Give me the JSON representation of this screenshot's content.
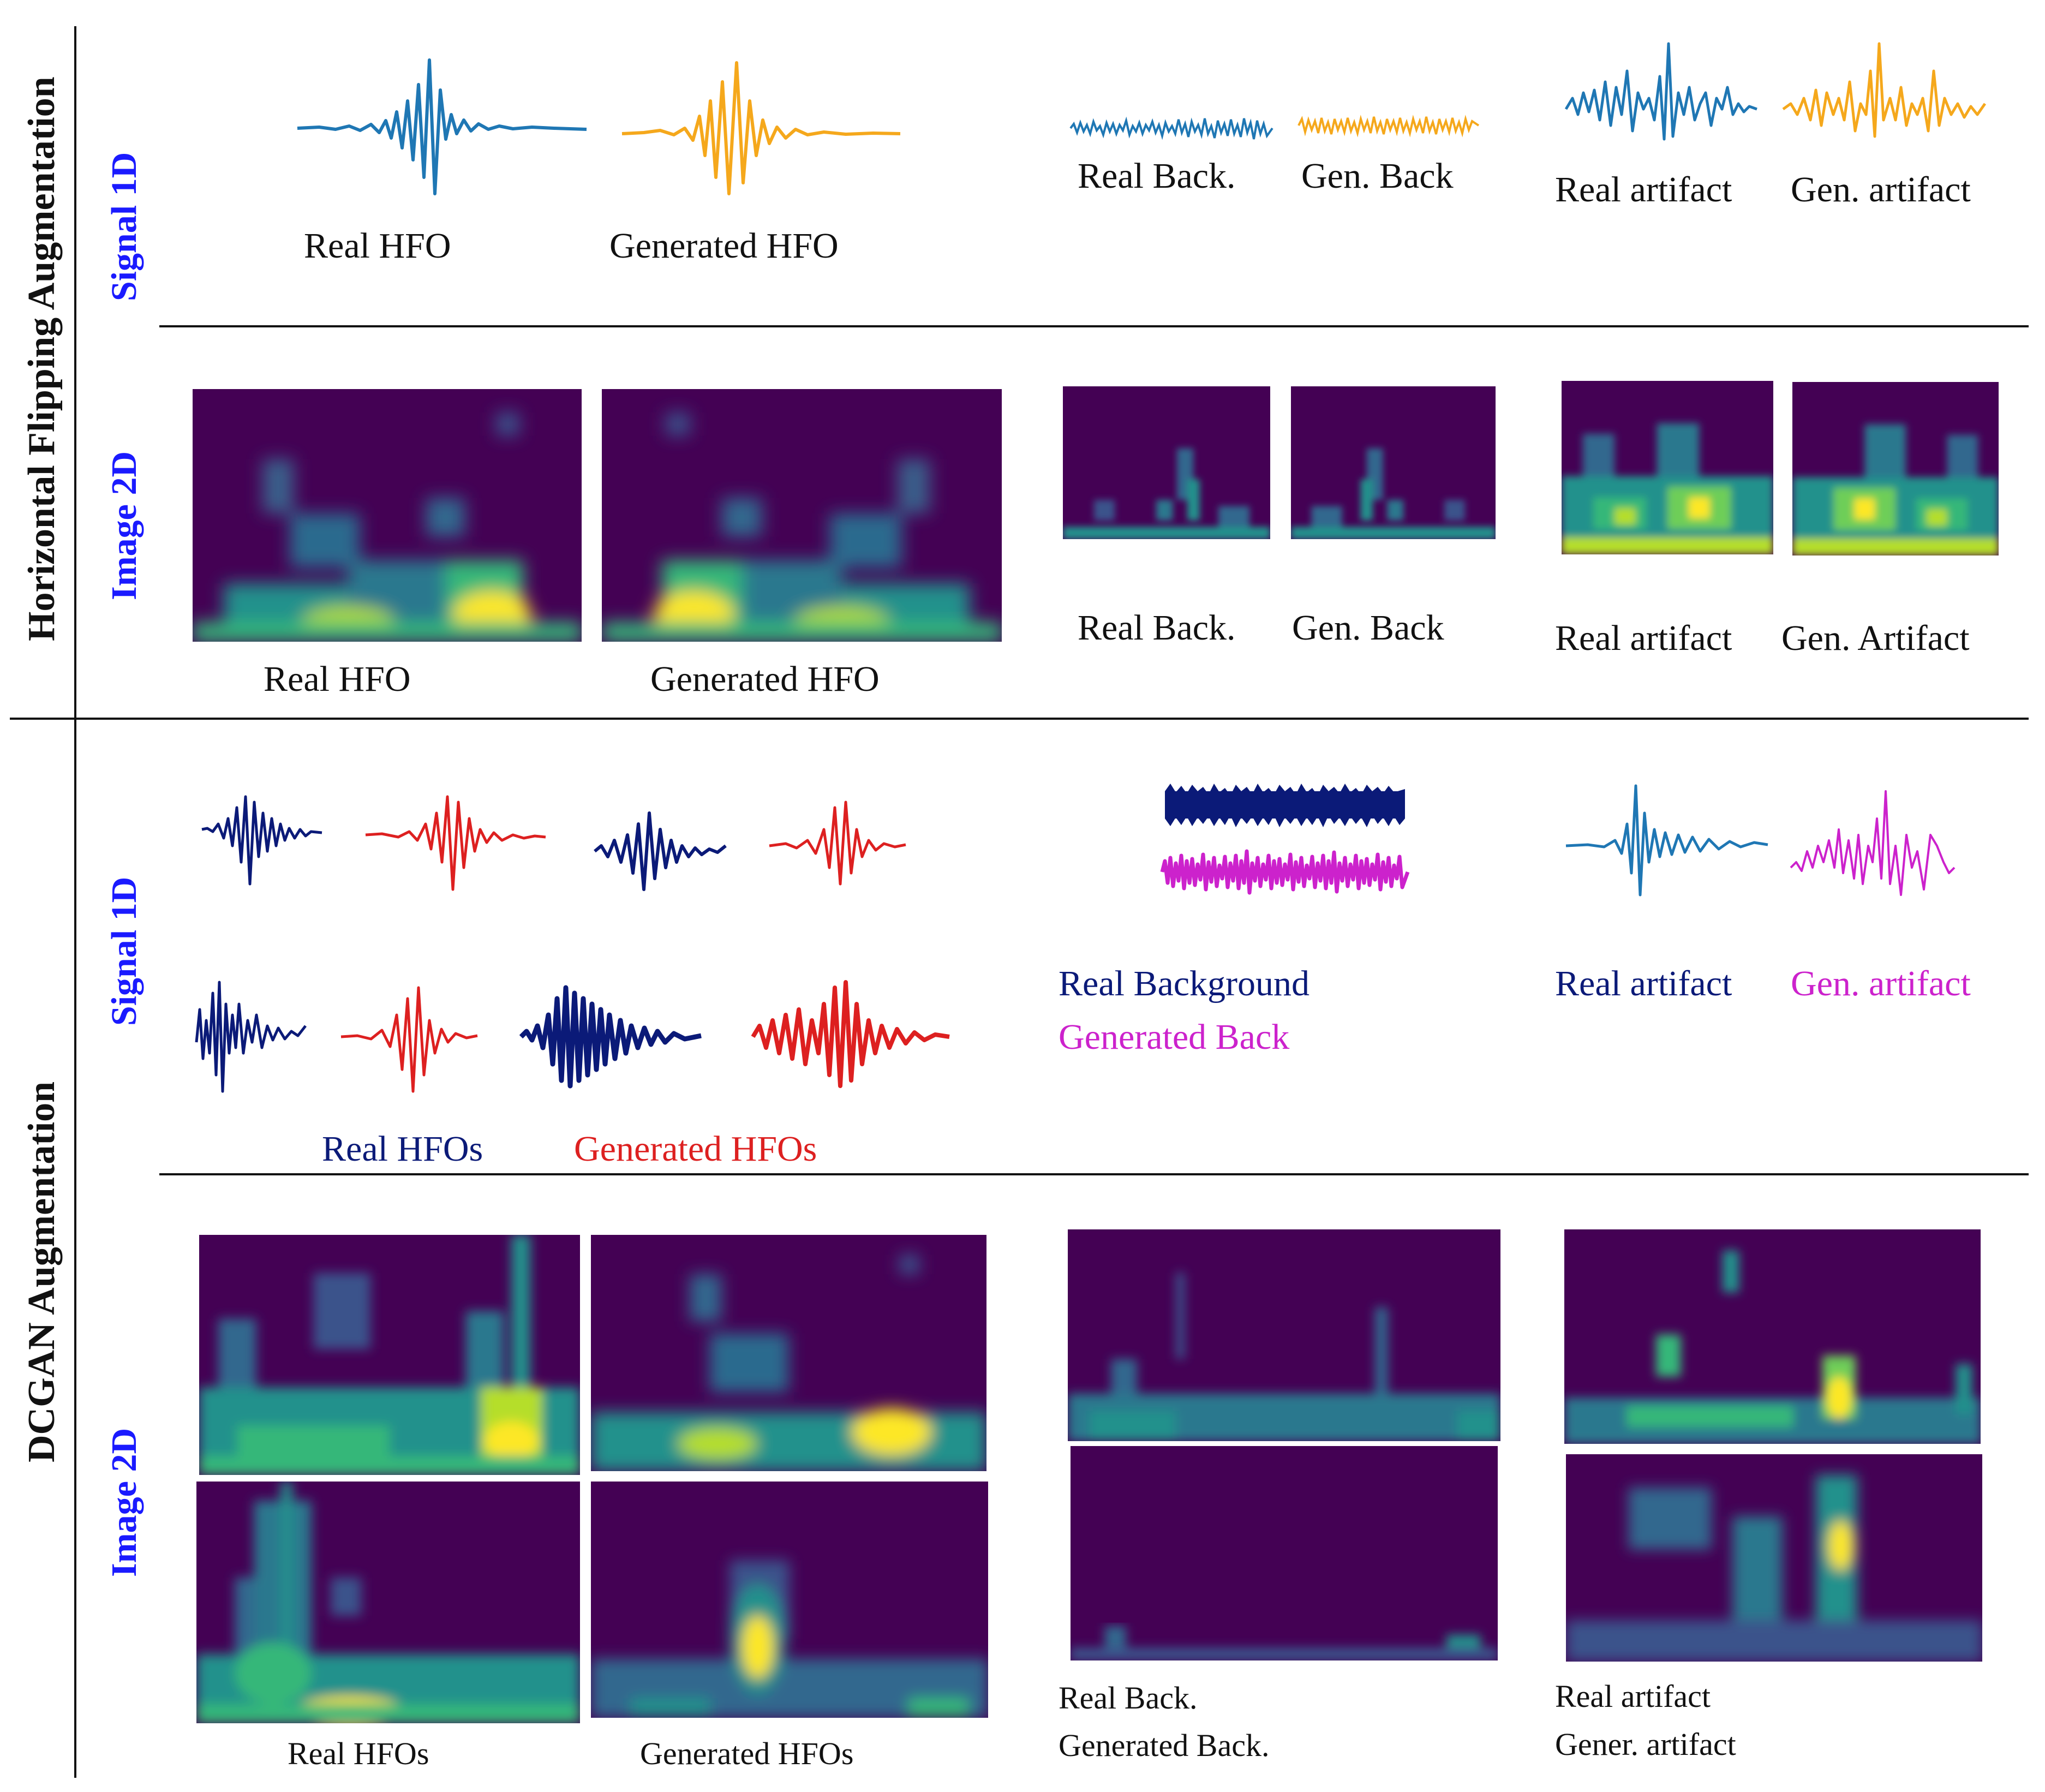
{
  "sections": {
    "flip": "Horizontal Flipping Augmentation",
    "dcgan": "DCGAN Augmentation"
  },
  "rows": {
    "signal1d": "Signal 1D",
    "image2d": "Image 2D"
  },
  "flip_signal": {
    "real_hfo": "Real HFO",
    "gen_hfo": "Generated HFO",
    "real_back": "Real Back.",
    "gen_back": "Gen. Back",
    "real_artifact": "Real artifact",
    "gen_artifact": "Gen. artifact"
  },
  "flip_image": {
    "real_hfo": "Real HFO",
    "gen_hfo": "Generated HFO",
    "real_back": "Real Back.",
    "gen_back": "Gen. Back",
    "real_artifact": "Real artifact",
    "gen_artifact": "Gen. Artifact"
  },
  "dcgan_signal": {
    "real_hfos": "Real HFOs",
    "gen_hfos": "Generated HFOs",
    "real_background": "Real Background",
    "gen_back": "Generated Back",
    "real_artifact": "Real artifact",
    "gen_artifact": "Gen. artifact"
  },
  "dcgan_image": {
    "real_hfos": "Real HFOs",
    "gen_hfos": "Generated HFOs",
    "real_back": "Real Back.",
    "gen_back": "Generated Back.",
    "real_artifact": "Real artifact",
    "gen_artifact": "Gener. artifact"
  },
  "colors": {
    "real_flip": "#1f77b4",
    "gen_flip": "#f5a81c",
    "real_dcgan": "#0b1a78",
    "gen_dcgan": "#dd2020",
    "gen_back_dcgan": "#cc22cc",
    "label_blue": "#1a1aff",
    "viridis_low": "#440154",
    "viridis_high": "#fde725"
  }
}
